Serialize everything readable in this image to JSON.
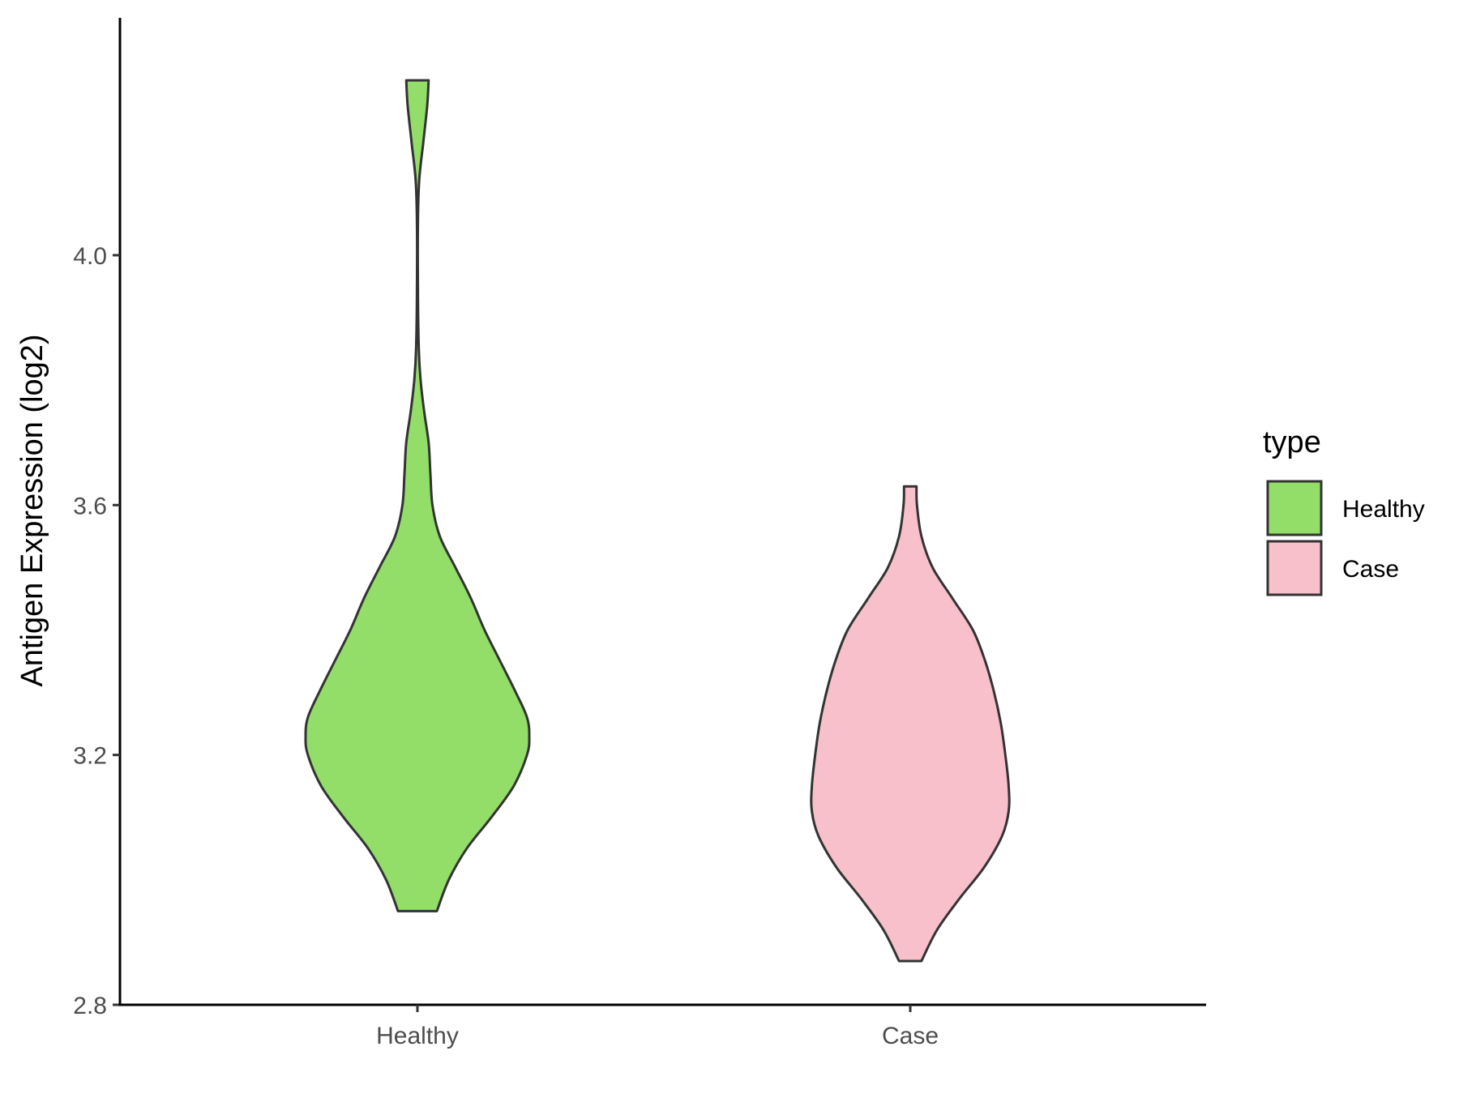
{
  "chart_data": {
    "type": "violin",
    "title": "",
    "xlabel": "",
    "ylabel": "Antigen Expression (log2)",
    "ylim": [
      2.8,
      4.38
    ],
    "yticks": [
      {
        "value": 2.8,
        "label": "2.8"
      },
      {
        "value": 3.2,
        "label": "3.2"
      },
      {
        "value": 3.6,
        "label": "3.6"
      },
      {
        "value": 4.0,
        "label": "4.0"
      }
    ],
    "grid": false,
    "categories": [
      "Healthy",
      "Case"
    ],
    "legend": {
      "title": "type",
      "position": "right",
      "entries": [
        {
          "label": "Healthy",
          "color": "#93dd69"
        },
        {
          "label": "Case",
          "color": "#f7c0cb"
        }
      ]
    },
    "series": [
      {
        "category": "Healthy",
        "color": "#93dd69",
        "min": 2.95,
        "max": 4.28,
        "density_profile": [
          {
            "y": 2.95,
            "half_width": 0.087
          },
          {
            "y": 3.0,
            "half_width": 0.14
          },
          {
            "y": 3.05,
            "half_width": 0.22
          },
          {
            "y": 3.1,
            "half_width": 0.33
          },
          {
            "y": 3.15,
            "half_width": 0.43
          },
          {
            "y": 3.2,
            "half_width": 0.49
          },
          {
            "y": 3.23,
            "half_width": 0.5
          },
          {
            "y": 3.26,
            "half_width": 0.49
          },
          {
            "y": 3.3,
            "half_width": 0.44
          },
          {
            "y": 3.35,
            "half_width": 0.37
          },
          {
            "y": 3.4,
            "half_width": 0.3
          },
          {
            "y": 3.45,
            "half_width": 0.24
          },
          {
            "y": 3.5,
            "half_width": 0.17
          },
          {
            "y": 3.55,
            "half_width": 0.1
          },
          {
            "y": 3.6,
            "half_width": 0.067
          },
          {
            "y": 3.65,
            "half_width": 0.058
          },
          {
            "y": 3.7,
            "half_width": 0.05
          },
          {
            "y": 3.75,
            "half_width": 0.03
          },
          {
            "y": 3.8,
            "half_width": 0.014
          },
          {
            "y": 3.85,
            "half_width": 0.006
          },
          {
            "y": 3.95,
            "half_width": 0.002
          },
          {
            "y": 4.05,
            "half_width": 0.002
          },
          {
            "y": 4.12,
            "half_width": 0.008
          },
          {
            "y": 4.18,
            "half_width": 0.026
          },
          {
            "y": 4.24,
            "half_width": 0.044
          },
          {
            "y": 4.28,
            "half_width": 0.05
          }
        ]
      },
      {
        "category": "Case",
        "color": "#f7c0cb",
        "min": 2.87,
        "max": 3.63,
        "density_profile": [
          {
            "y": 2.87,
            "half_width": 0.05
          },
          {
            "y": 2.92,
            "half_width": 0.12
          },
          {
            "y": 2.97,
            "half_width": 0.22
          },
          {
            "y": 3.02,
            "half_width": 0.33
          },
          {
            "y": 3.07,
            "half_width": 0.41
          },
          {
            "y": 3.11,
            "half_width": 0.44
          },
          {
            "y": 3.15,
            "half_width": 0.44
          },
          {
            "y": 3.2,
            "half_width": 0.425
          },
          {
            "y": 3.25,
            "half_width": 0.405
          },
          {
            "y": 3.3,
            "half_width": 0.375
          },
          {
            "y": 3.35,
            "half_width": 0.335
          },
          {
            "y": 3.4,
            "half_width": 0.28
          },
          {
            "y": 3.45,
            "half_width": 0.19
          },
          {
            "y": 3.5,
            "half_width": 0.1
          },
          {
            "y": 3.55,
            "half_width": 0.05
          },
          {
            "y": 3.6,
            "half_width": 0.03
          },
          {
            "y": 3.63,
            "half_width": 0.028
          }
        ]
      }
    ]
  }
}
